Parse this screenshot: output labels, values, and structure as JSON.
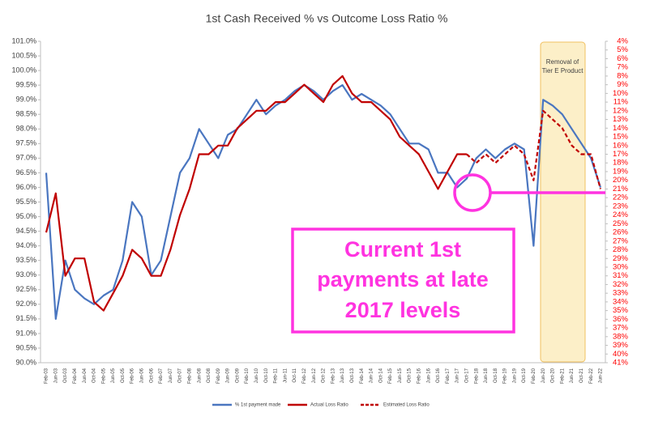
{
  "chart_data": {
    "type": "line",
    "title": "1st Cash Received % vs Outcome Loss Ratio %",
    "categories": [
      "Feb-03",
      "Jun-03",
      "Oct-03",
      "Feb-04",
      "Jun-04",
      "Oct-04",
      "Feb-05",
      "Jun-05",
      "Oct-05",
      "Feb-06",
      "Jun-06",
      "Oct-06",
      "Feb-07",
      "Jun-07",
      "Oct-07",
      "Feb-08",
      "Jun-08",
      "Oct-08",
      "Feb-09",
      "Jun-09",
      "Oct-09",
      "Feb-10",
      "Jun-10",
      "Oct-10",
      "Feb-11",
      "Jun-11",
      "Oct-11",
      "Feb-12",
      "Jun-12",
      "Oct-12",
      "Feb-13",
      "Jun-13",
      "Oct-13",
      "Feb-14",
      "Jun-14",
      "Oct-14",
      "Feb-15",
      "Jun-15",
      "Oct-15",
      "Feb-16",
      "Jun-16",
      "Oct-16",
      "Feb-17",
      "Jun-17",
      "Oct-17",
      "Feb-18",
      "Jun-18",
      "Oct-18",
      "Feb-19",
      "Jun-19",
      "Oct-19",
      "Feb-20",
      "Jun-20",
      "Oct-20",
      "Feb-21",
      "Jun-21",
      "Oct-21",
      "Feb-22",
      "Jun-22"
    ],
    "series": [
      {
        "name": "% 1st payment made",
        "color": "#4a76c0",
        "axis": "y",
        "dashed": false,
        "values": [
          96.5,
          91.5,
          93.5,
          92.5,
          92.2,
          92.0,
          92.3,
          92.5,
          93.5,
          95.5,
          95.0,
          93.0,
          93.5,
          95.0,
          96.5,
          97.0,
          98.0,
          97.5,
          97.0,
          97.8,
          98.0,
          98.5,
          99.0,
          98.5,
          98.8,
          99.0,
          99.3,
          99.5,
          99.3,
          99.0,
          99.3,
          99.5,
          99.0,
          99.2,
          99.0,
          98.8,
          98.5,
          98.0,
          97.5,
          97.5,
          97.3,
          96.5,
          96.5,
          96.0,
          96.3,
          97.0,
          97.3,
          97.0,
          97.3,
          97.5,
          97.3,
          94.0,
          99.0,
          98.8,
          98.5,
          98.0,
          97.5,
          97.0,
          96.0
        ]
      },
      {
        "name": "Actual Loss Ratio",
        "color": "#c00000",
        "axis": "y2",
        "dashed": false,
        "values": [
          26,
          21.5,
          31,
          29,
          29,
          34,
          35,
          33,
          31,
          28,
          29,
          31,
          31,
          28,
          24,
          21,
          17,
          17,
          16,
          16,
          14,
          13,
          12,
          12,
          11,
          11,
          10,
          9,
          10,
          11,
          9,
          8,
          10,
          11,
          11,
          12,
          13,
          15,
          16,
          17,
          19,
          21,
          19,
          17,
          17,
          null,
          null,
          null,
          null,
          null,
          null,
          null,
          null,
          null,
          null,
          null,
          null,
          null,
          null
        ]
      },
      {
        "name": "Estimated Loss Ratio",
        "color": "#c00000",
        "axis": "y2",
        "dashed": true,
        "values": [
          null,
          null,
          null,
          null,
          null,
          null,
          null,
          null,
          null,
          null,
          null,
          null,
          null,
          null,
          null,
          null,
          null,
          null,
          null,
          null,
          null,
          null,
          null,
          null,
          null,
          null,
          null,
          null,
          null,
          null,
          null,
          null,
          null,
          null,
          null,
          null,
          null,
          null,
          null,
          null,
          null,
          null,
          null,
          null,
          17,
          18,
          17,
          18,
          17,
          16,
          17,
          20,
          12,
          13,
          14,
          16,
          17,
          17,
          21
        ]
      }
    ],
    "ylim": [
      90,
      101
    ],
    "yticks": [
      {
        "value": 90,
        "label": "90.0%"
      },
      {
        "value": 90.5,
        "label": "90.5%"
      },
      {
        "value": 91,
        "label": "91.0%"
      },
      {
        "value": 91.5,
        "label": "91.5%"
      },
      {
        "value": 92,
        "label": "92.0%"
      },
      {
        "value": 92.5,
        "label": "92.5%"
      },
      {
        "value": 93,
        "label": "93.0%"
      },
      {
        "value": 93.5,
        "label": "93.5%"
      },
      {
        "value": 94,
        "label": "94.0%"
      },
      {
        "value": 94.5,
        "label": "94.5%"
      },
      {
        "value": 95,
        "label": "95.0%"
      },
      {
        "value": 95.5,
        "label": "95.5%"
      },
      {
        "value": 96,
        "label": "96.0%"
      },
      {
        "value": 96.5,
        "label": "96.5%"
      },
      {
        "value": 97,
        "label": "97.0%"
      },
      {
        "value": 97.5,
        "label": "97.5%"
      },
      {
        "value": 98,
        "label": "98.0%"
      },
      {
        "value": 98.5,
        "label": "98.5%"
      },
      {
        "value": 99,
        "label": "99.0%"
      },
      {
        "value": 99.5,
        "label": "99.5%"
      },
      {
        "value": 100,
        "label": "100.0%"
      },
      {
        "value": 100.5,
        "label": "100.5%"
      },
      {
        "value": 101,
        "label": "101.0%"
      }
    ],
    "y2lim": [
      4,
      41
    ],
    "y2_inverted": true,
    "y2ticks": [
      {
        "value": 4,
        "label": "4%"
      },
      {
        "value": 5,
        "label": "5%"
      },
      {
        "value": 6,
        "label": "6%"
      },
      {
        "value": 7,
        "label": "7%"
      },
      {
        "value": 8,
        "label": "8%"
      },
      {
        "value": 9,
        "label": "9%"
      },
      {
        "value": 10,
        "label": "10%"
      },
      {
        "value": 11,
        "label": "11%"
      },
      {
        "value": 12,
        "label": "12%"
      },
      {
        "value": 13,
        "label": "13%"
      },
      {
        "value": 14,
        "label": "14%"
      },
      {
        "value": 15,
        "label": "15%"
      },
      {
        "value": 16,
        "label": "16%"
      },
      {
        "value": 17,
        "label": "17%"
      },
      {
        "value": 18,
        "label": "18%"
      },
      {
        "value": 19,
        "label": "19%"
      },
      {
        "value": 20,
        "label": "20%"
      },
      {
        "value": 21,
        "label": "21%"
      },
      {
        "value": 22,
        "label": "22%"
      },
      {
        "value": 23,
        "label": "23%"
      },
      {
        "value": 24,
        "label": "24%"
      },
      {
        "value": 25,
        "label": "25%"
      },
      {
        "value": 26,
        "label": "26%"
      },
      {
        "value": 27,
        "label": "27%"
      },
      {
        "value": 28,
        "label": "28%"
      },
      {
        "value": 29,
        "label": "29%"
      },
      {
        "value": 30,
        "label": "30%"
      },
      {
        "value": 31,
        "label": "31%"
      },
      {
        "value": 32,
        "label": "32%"
      },
      {
        "value": 33,
        "label": "33%"
      },
      {
        "value": 34,
        "label": "34%"
      },
      {
        "value": 35,
        "label": "35%"
      },
      {
        "value": 36,
        "label": "36%"
      },
      {
        "value": 37,
        "label": "37%"
      },
      {
        "value": 38,
        "label": "38%"
      },
      {
        "value": 39,
        "label": "39%"
      },
      {
        "value": 40,
        "label": "40%"
      },
      {
        "value": 41,
        "label": "41%"
      }
    ],
    "band_label": [
      "Removal of",
      "Tier E Product"
    ],
    "callout": [
      "Current 1st",
      "payments at late",
      "2017 levels"
    ],
    "legend": "bottom"
  }
}
